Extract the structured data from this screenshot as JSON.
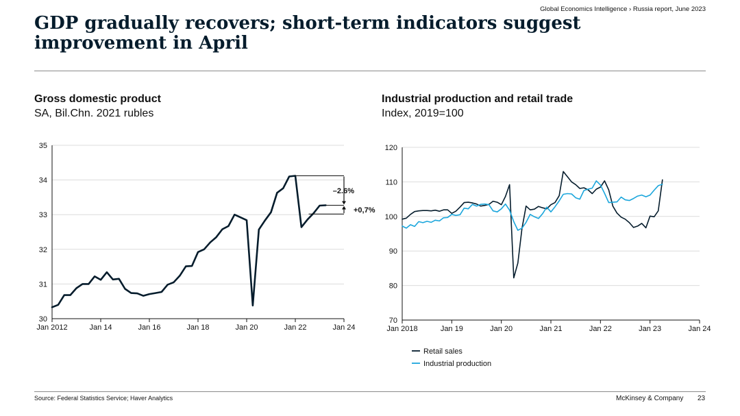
{
  "header": {
    "meta": "Global Economics Intelligence › Russia report, June 2023",
    "title": "GDP gradually recovers; short-term indicators suggest improvement in April"
  },
  "footer": {
    "source": "Source: Federal Statistics Service; Haver Analytics",
    "brand": "McKinsey & Company",
    "page_number": "23"
  },
  "colors": {
    "navy": "#051c2c",
    "cyan": "#1ba6dc",
    "grid": "#dcdcdc",
    "axis": "#111111"
  },
  "chart_data": [
    {
      "type": "line",
      "title": "Gross domestic product",
      "subtitle": "SA, Bil.Chn. 2021 rubles",
      "xlim": [
        2012,
        2024
      ],
      "ylim": [
        30,
        35
      ],
      "yticks": [
        30,
        31,
        32,
        33,
        34,
        35
      ],
      "xticks": [
        {
          "label": "Jan 2012",
          "value": 2012
        },
        {
          "label": "Jan 14",
          "value": 2014
        },
        {
          "label": "Jan 16",
          "value": 2016
        },
        {
          "label": "Jan 18",
          "value": 2018
        },
        {
          "label": "Jan 20",
          "value": 2020
        },
        {
          "label": "Jan 22",
          "value": 2022
        },
        {
          "label": "Jan 24",
          "value": 2024
        }
      ],
      "series": [
        {
          "name": "GDP",
          "color": "#051c2c",
          "x": [
            2012.0,
            2012.25,
            2012.5,
            2012.75,
            2013.0,
            2013.25,
            2013.5,
            2013.75,
            2014.0,
            2014.25,
            2014.5,
            2014.75,
            2015.0,
            2015.25,
            2015.5,
            2015.75,
            2016.0,
            2016.25,
            2016.5,
            2016.75,
            2017.0,
            2017.25,
            2017.5,
            2017.75,
            2018.0,
            2018.25,
            2018.5,
            2018.75,
            2019.0,
            2019.25,
            2019.5,
            2019.75,
            2020.0,
            2020.25,
            2020.5,
            2020.75,
            2021.0,
            2021.25,
            2021.5,
            2021.75,
            2022.0,
            2022.25,
            2022.5,
            2022.75,
            2023.0,
            2023.25
          ],
          "y": [
            30.33,
            30.4,
            30.68,
            30.68,
            30.88,
            31.0,
            31.0,
            31.22,
            31.12,
            31.34,
            31.13,
            31.15,
            30.86,
            30.74,
            30.73,
            30.66,
            30.71,
            30.74,
            30.77,
            30.98,
            31.05,
            31.24,
            31.51,
            31.52,
            31.92,
            32.0,
            32.2,
            32.35,
            32.58,
            32.67,
            33.0,
            32.92,
            32.84,
            30.38,
            32.57,
            32.83,
            33.07,
            33.63,
            33.76,
            34.1,
            34.12,
            32.64,
            32.86,
            33.04,
            33.26,
            33.27
          ]
        }
      ],
      "annotations": [
        {
          "label": "–2.6%",
          "from": 34.12,
          "to": 33.27
        },
        {
          "label": "+0,7%",
          "from": 33.02,
          "to": 33.27
        }
      ]
    },
    {
      "type": "line",
      "title": "Industrial production and retail trade",
      "subtitle": "Index, 2019=100",
      "xlim": [
        2018,
        2024
      ],
      "ylim": [
        70,
        120
      ],
      "yticks": [
        70,
        80,
        90,
        100,
        110,
        120
      ],
      "xticks": [
        {
          "label": "Jan 2018",
          "value": 2018
        },
        {
          "label": "Jan 19",
          "value": 2019
        },
        {
          "label": "Jan 20",
          "value": 2020
        },
        {
          "label": "Jan 21",
          "value": 2021
        },
        {
          "label": "Jan 22",
          "value": 2022
        },
        {
          "label": "Jan 23",
          "value": 2023
        },
        {
          "label": "Jan 24",
          "value": 2024
        }
      ],
      "series": [
        {
          "name": "Retail sales",
          "color": "#051c2c",
          "x": [
            2018.0,
            2018.083,
            2018.167,
            2018.25,
            2018.333,
            2018.417,
            2018.5,
            2018.583,
            2018.667,
            2018.75,
            2018.833,
            2018.917,
            2019.0,
            2019.083,
            2019.167,
            2019.25,
            2019.333,
            2019.417,
            2019.5,
            2019.583,
            2019.667,
            2019.75,
            2019.833,
            2019.917,
            2020.0,
            2020.083,
            2020.167,
            2020.25,
            2020.333,
            2020.417,
            2020.5,
            2020.583,
            2020.667,
            2020.75,
            2020.833,
            2020.917,
            2021.0,
            2021.083,
            2021.167,
            2021.25,
            2021.333,
            2021.417,
            2021.5,
            2021.583,
            2021.667,
            2021.75,
            2021.833,
            2021.917,
            2022.0,
            2022.083,
            2022.167,
            2022.25,
            2022.333,
            2022.417,
            2022.5,
            2022.583,
            2022.667,
            2022.75,
            2022.833,
            2022.917,
            2023.0,
            2023.083,
            2023.167,
            2023.25
          ],
          "y": [
            99.2,
            99.5,
            100.6,
            101.4,
            101.6,
            101.7,
            101.7,
            101.6,
            101.8,
            101.5,
            101.9,
            101.9,
            100.9,
            101.5,
            102.7,
            104.0,
            104.1,
            103.9,
            103.6,
            103.0,
            103.2,
            103.5,
            104.4,
            104.1,
            103.4,
            105.8,
            109.2,
            82.2,
            86.5,
            96.5,
            103.0,
            101.9,
            102.1,
            102.9,
            102.5,
            102.2,
            103.4,
            104.0,
            106.0,
            113.0,
            111.5,
            110.0,
            109.2,
            108.1,
            108.3,
            107.7,
            106.6,
            107.9,
            108.5,
            110.3,
            107.7,
            103.0,
            101.0,
            99.8,
            99.2,
            98.2,
            96.8,
            97.2,
            98.0,
            96.7,
            100.1,
            99.9,
            101.6,
            110.6
          ]
        },
        {
          "name": "Industrial production",
          "color": "#1ba6dc",
          "x": [
            2018.0,
            2018.083,
            2018.167,
            2018.25,
            2018.333,
            2018.417,
            2018.5,
            2018.583,
            2018.667,
            2018.75,
            2018.833,
            2018.917,
            2019.0,
            2019.083,
            2019.167,
            2019.25,
            2019.333,
            2019.417,
            2019.5,
            2019.583,
            2019.667,
            2019.75,
            2019.833,
            2019.917,
            2020.0,
            2020.083,
            2020.167,
            2020.25,
            2020.333,
            2020.417,
            2020.5,
            2020.583,
            2020.667,
            2020.75,
            2020.833,
            2020.917,
            2021.0,
            2021.083,
            2021.167,
            2021.25,
            2021.333,
            2021.417,
            2021.5,
            2021.583,
            2021.667,
            2021.75,
            2021.833,
            2021.917,
            2022.0,
            2022.083,
            2022.167,
            2022.25,
            2022.333,
            2022.417,
            2022.5,
            2022.583,
            2022.667,
            2022.75,
            2022.833,
            2022.917,
            2023.0,
            2023.083,
            2023.167,
            2023.25
          ],
          "y": [
            97.2,
            96.6,
            97.6,
            97.1,
            98.5,
            98.2,
            98.6,
            98.3,
            98.9,
            98.7,
            99.6,
            99.7,
            100.6,
            100.3,
            100.5,
            102.4,
            102.2,
            103.5,
            103.0,
            103.5,
            103.6,
            103.4,
            101.6,
            101.3,
            102.2,
            103.6,
            101.8,
            98.5,
            96.0,
            96.6,
            98.3,
            100.6,
            99.9,
            99.4,
            100.8,
            102.7,
            101.3,
            102.8,
            104.5,
            106.4,
            106.6,
            106.5,
            105.4,
            105.0,
            107.5,
            107.9,
            108.2,
            110.3,
            109.1,
            106.7,
            104.0,
            104.1,
            104.2,
            105.6,
            104.8,
            104.6,
            105.2,
            105.9,
            106.2,
            105.7,
            106.2,
            107.6,
            108.9,
            109.3
          ]
        }
      ],
      "legend": [
        "Retail sales",
        "Industrial production"
      ]
    }
  ]
}
